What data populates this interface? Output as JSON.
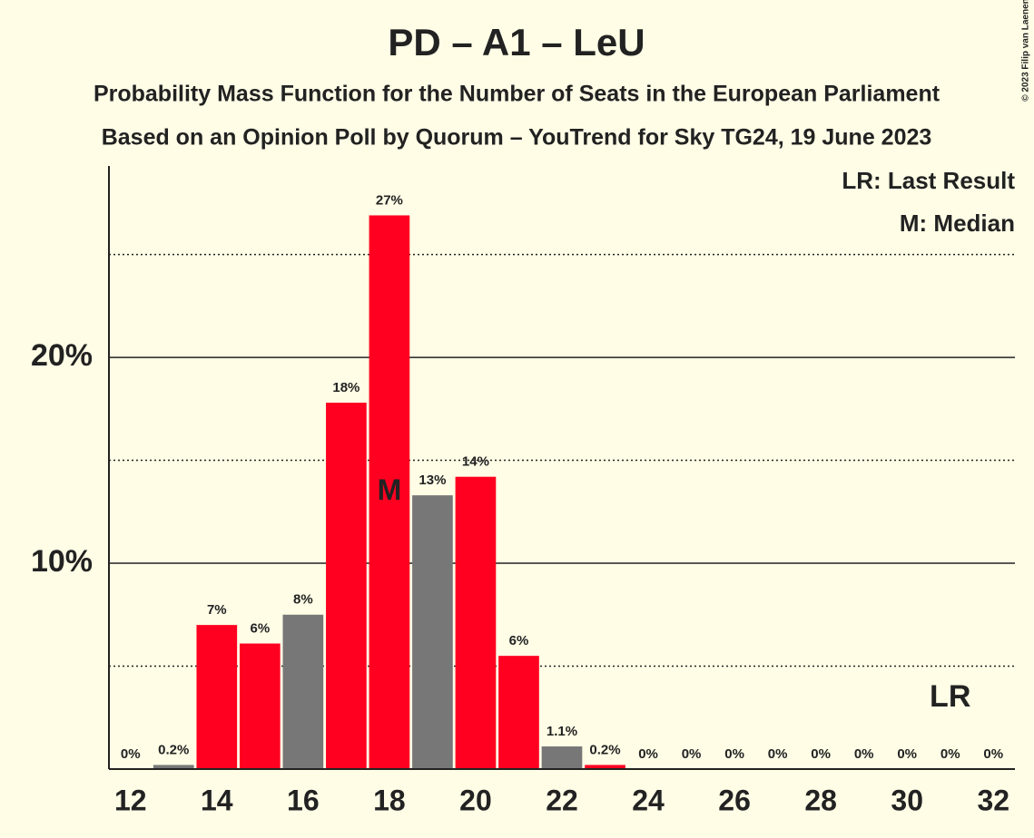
{
  "chart_data": {
    "type": "bar",
    "title": "PD – A1 – LeU",
    "subtitle": "Probability Mass Function for the Number of Seats in the European Parliament",
    "subtitle2": "Based on an Opinion Poll by Quorum – YouTrend for Sky TG24, 19 June 2023",
    "copyright": "© 2023 Filip van Laenen",
    "x": [
      12,
      13,
      14,
      15,
      16,
      17,
      18,
      19,
      20,
      21,
      22,
      23,
      24,
      25,
      26,
      27,
      28,
      29,
      30,
      31,
      32
    ],
    "values": [
      0,
      0.2,
      7.0,
      6.1,
      7.5,
      17.8,
      26.9,
      13.3,
      14.2,
      5.5,
      1.1,
      0.2,
      0,
      0,
      0,
      0,
      0,
      0,
      0,
      0,
      0
    ],
    "value_labels": [
      "0%",
      "0.2%",
      "7%",
      "6%",
      "8%",
      "18%",
      "27%",
      "13%",
      "14%",
      "6%",
      "1.1%",
      "0.2%",
      "0%",
      "0%",
      "0%",
      "0%",
      "0%",
      "0%",
      "0%",
      "0%",
      "0%"
    ],
    "colors": [
      "#777777",
      "#777777",
      "#ff0020",
      "#ff0020",
      "#777777",
      "#ff0020",
      "#ff0020",
      "#777777",
      "#ff0020",
      "#ff0020",
      "#777777",
      "#ff0020",
      "#777777",
      "#777777",
      "#777777",
      "#777777",
      "#777777",
      "#777777",
      "#777777",
      "#777777",
      "#777777"
    ],
    "xlim": [
      11.5,
      32.5
    ],
    "xticks": [
      12,
      14,
      16,
      18,
      20,
      22,
      24,
      26,
      28,
      30,
      32
    ],
    "ylim": [
      0,
      29.3
    ],
    "yticks": [
      {
        "value": 10,
        "label": "10%"
      },
      {
        "value": 20,
        "label": "20%"
      }
    ],
    "minor_gridlines": [
      5,
      15,
      25
    ],
    "annotations": [
      {
        "label": "M",
        "x": 18
      },
      {
        "label": "LR",
        "x": 31
      }
    ],
    "legend": [
      "LR: Last Result",
      "M: Median"
    ],
    "legend_position": "upper right"
  }
}
